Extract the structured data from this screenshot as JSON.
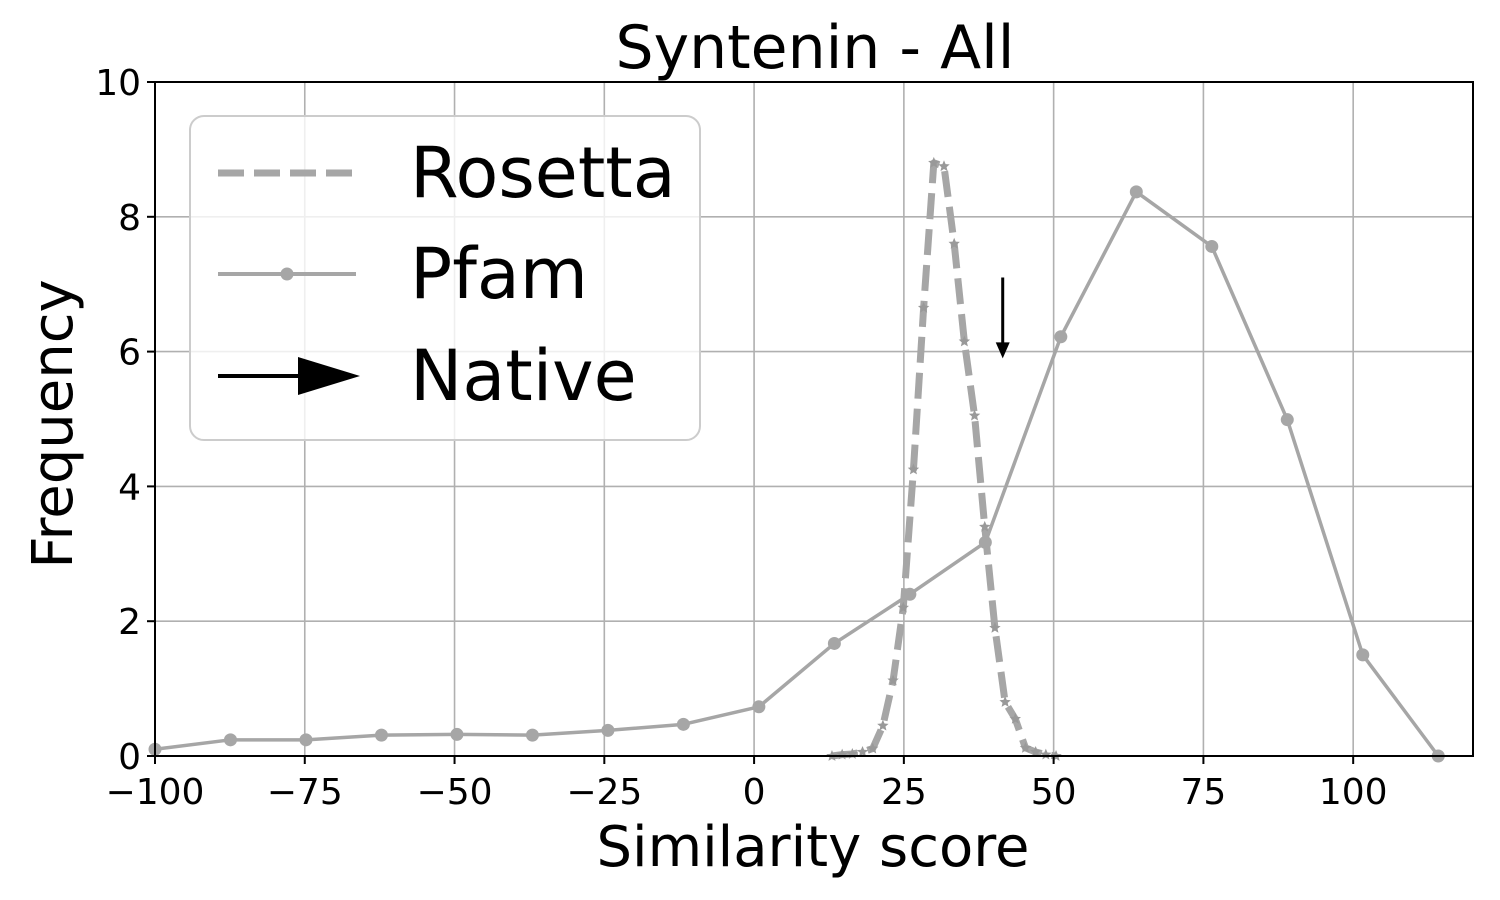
{
  "chart_data": {
    "type": "line",
    "title": "Syntenin - All",
    "xlabel": "Similarity score",
    "ylabel": "Frequency",
    "xlim": [
      -100,
      120
    ],
    "ylim": [
      0,
      10
    ],
    "xticks": [
      -100,
      -75,
      -50,
      -25,
      0,
      25,
      50,
      75,
      100
    ],
    "xtick_labels": [
      "−100",
      "−75",
      "−50",
      "−25",
      "0",
      "25",
      "50",
      "75",
      "100"
    ],
    "yticks": [
      0,
      2,
      4,
      6,
      8,
      10
    ],
    "ytick_labels": [
      "0",
      "2",
      "4",
      "6",
      "8",
      "10"
    ],
    "grid": true,
    "legend_position": "top-left",
    "series": [
      {
        "name": "Rosetta",
        "style": "dashed",
        "marker": "star",
        "color": "#a6a6a6",
        "x": [
          13,
          14.7,
          16.4,
          18.1,
          19.8,
          21.5,
          23.2,
          24.9,
          26.6,
          28.3,
          30.0,
          31.7,
          33.4,
          35.1,
          36.8,
          38.5,
          40.2,
          41.9,
          43.6,
          45.3,
          47.0,
          48.7,
          50.4
        ],
        "y": [
          0.0,
          0.02,
          0.03,
          0.06,
          0.11,
          0.45,
          1.12,
          2.2,
          4.25,
          6.65,
          8.8,
          8.75,
          7.6,
          6.15,
          5.05,
          3.4,
          1.9,
          0.8,
          0.55,
          0.12,
          0.06,
          0.02,
          0.0
        ]
      },
      {
        "name": "Pfam",
        "style": "solid",
        "marker": "circle",
        "color": "#a6a6a6",
        "x": [
          -100,
          -87.4,
          -74.8,
          -62.2,
          -49.6,
          -37,
          -24.4,
          -11.8,
          0.8,
          13.4,
          26,
          38.6,
          51.2,
          63.8,
          76.4,
          89,
          101.6,
          114.2
        ],
        "y": [
          0.1,
          0.24,
          0.24,
          0.31,
          0.32,
          0.31,
          0.38,
          0.47,
          0.73,
          1.67,
          2.4,
          3.17,
          6.22,
          8.37,
          7.56,
          4.99,
          1.5,
          0.0
        ]
      }
    ],
    "annotations": [
      {
        "name": "Native",
        "type": "arrow",
        "x": 41.5,
        "y_from": 7.1,
        "y_to": 5.9,
        "color": "#000000"
      }
    ]
  }
}
